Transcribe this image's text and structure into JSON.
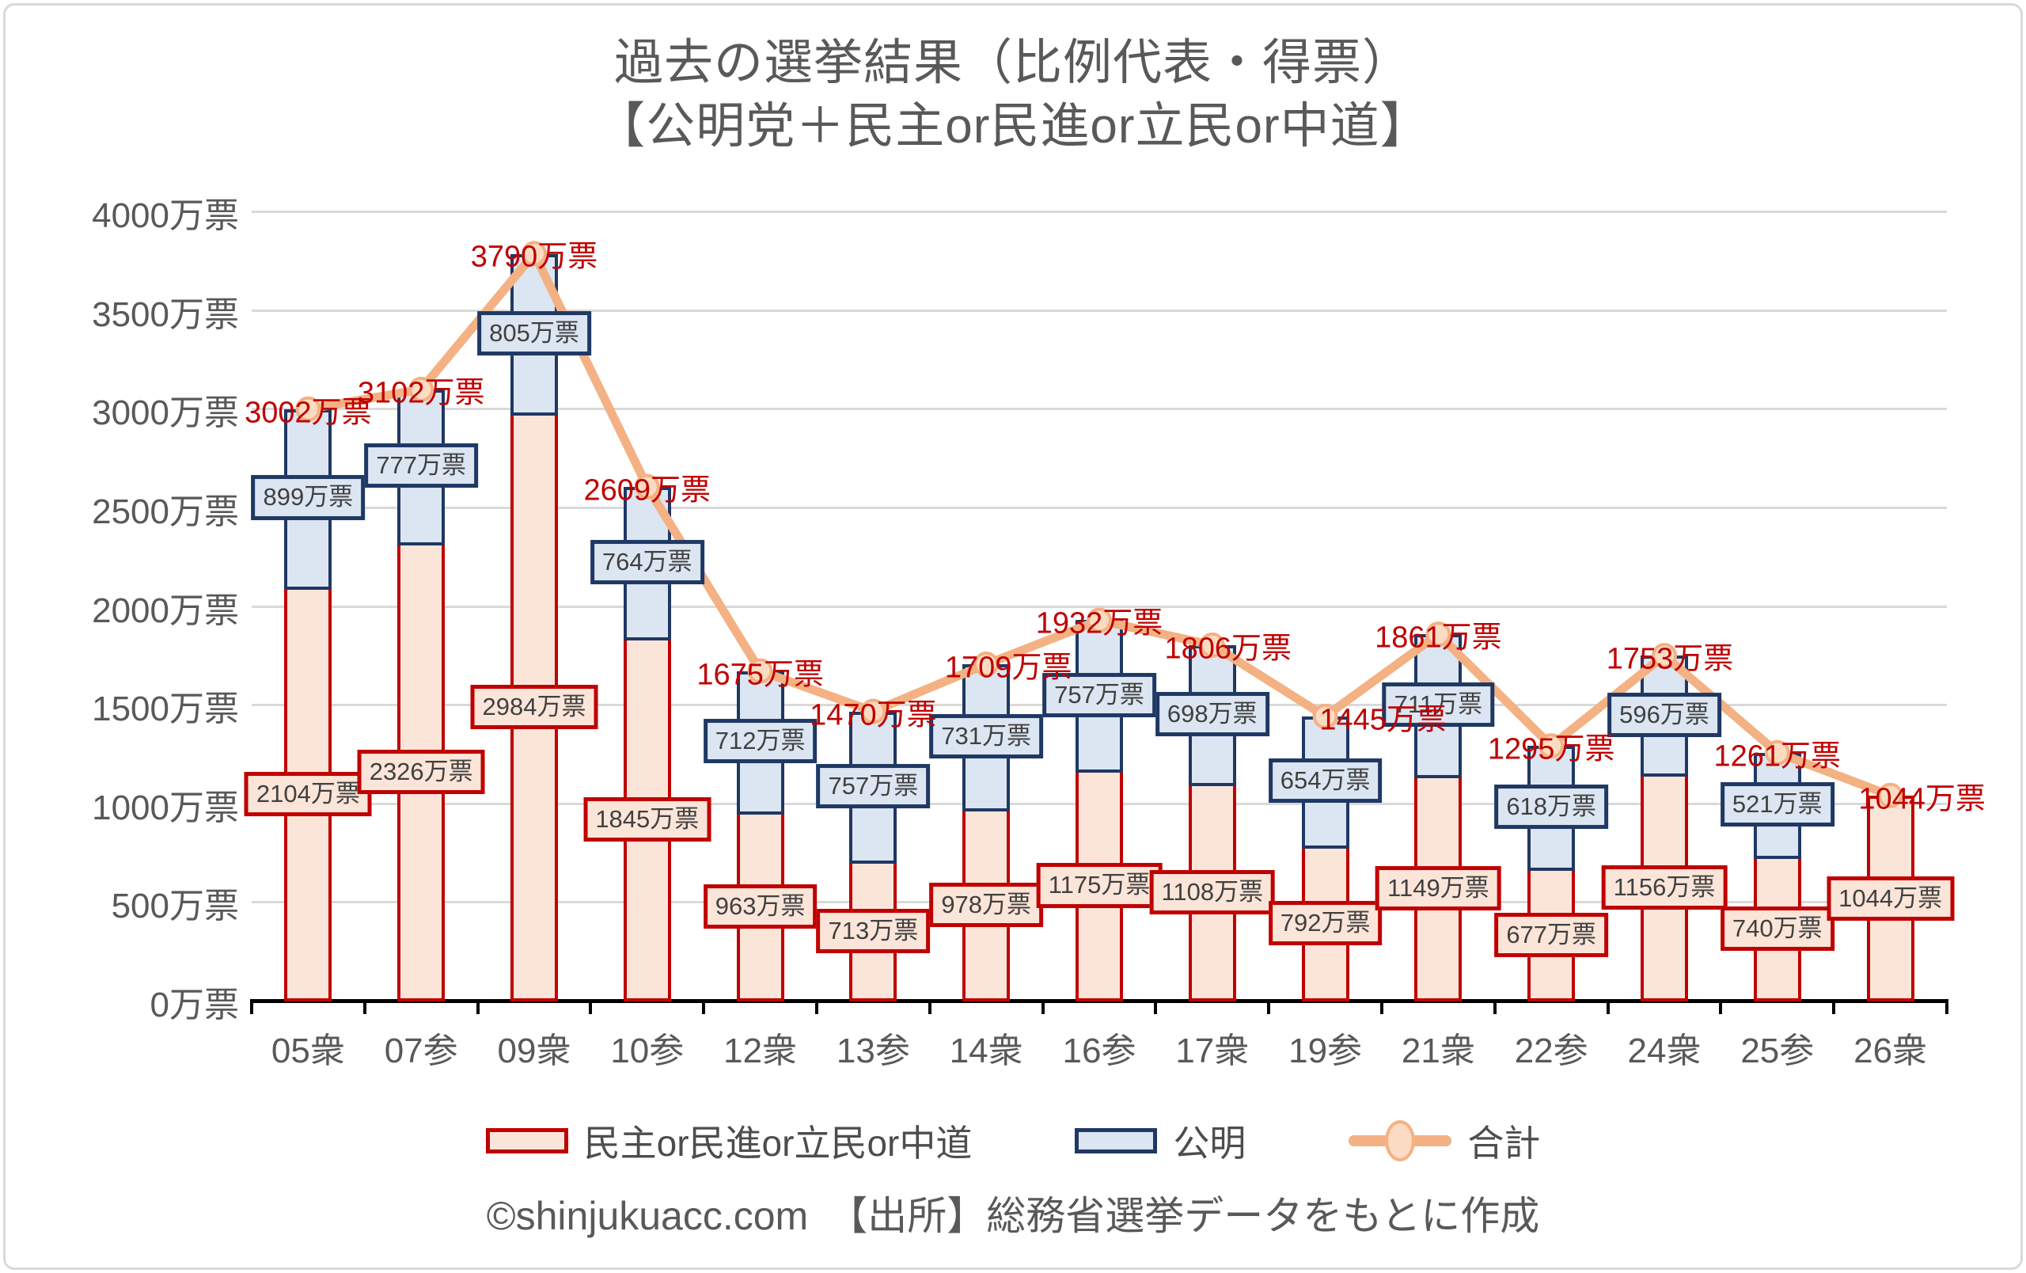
{
  "title": {
    "line1": "過去の選挙結果（比例代表・得票）",
    "line2": "【公明党＋民主or民進or立民or中道】"
  },
  "chart_data": {
    "type": "bar",
    "subtype": "stacked-bars-with-total-line",
    "unit": "万票",
    "categories": [
      "05衆",
      "07参",
      "09衆",
      "10参",
      "12衆",
      "13参",
      "14衆",
      "16参",
      "17衆",
      "19参",
      "21衆",
      "22参",
      "24衆",
      "25参",
      "26衆"
    ],
    "series": [
      {
        "name": "民主or民進or立民or中道",
        "role": "bar",
        "values": [
          2104,
          2326,
          2984,
          1845,
          963,
          713,
          978,
          1175,
          1108,
          792,
          1149,
          677,
          1156,
          740,
          1044
        ],
        "fill": "#fbe5d9",
        "border": "#c00000"
      },
      {
        "name": "公明",
        "role": "bar",
        "values": [
          899,
          777,
          805,
          764,
          712,
          757,
          731,
          757,
          698,
          654,
          711,
          618,
          596,
          521,
          null
        ],
        "fill": "#dce6f2",
        "border": "#1f3864"
      },
      {
        "name": "合計",
        "role": "line",
        "values": [
          3002,
          3102,
          3790,
          2609,
          1675,
          1470,
          1709,
          1932,
          1806,
          1445,
          1861,
          1295,
          1753,
          1261,
          1044
        ],
        "color": "#f4b183",
        "marker_fill": "#fbdcc3",
        "label_color": "#c00000"
      }
    ],
    "ylim": [
      0,
      4000
    ],
    "ytick_step": 500,
    "ytick_labels": [
      "0万票",
      "500万票",
      "1000万票",
      "1500万票",
      "2000万票",
      "2500万票",
      "3000万票",
      "3500万票",
      "4000万票"
    ],
    "grid": true,
    "legend_position": "bottom",
    "total_label_dx": [
      0,
      0,
      0,
      0,
      0,
      0,
      28,
      0,
      20,
      73,
      0,
      0,
      7,
      0,
      40
    ],
    "grid_color": "#d9d9d9",
    "axis_text_color": "#595959",
    "bar_label_text_color": "#404040"
  },
  "footer": {
    "credit": "©shinjukuacc.com　【出所】総務省選挙データをもとに作成"
  }
}
